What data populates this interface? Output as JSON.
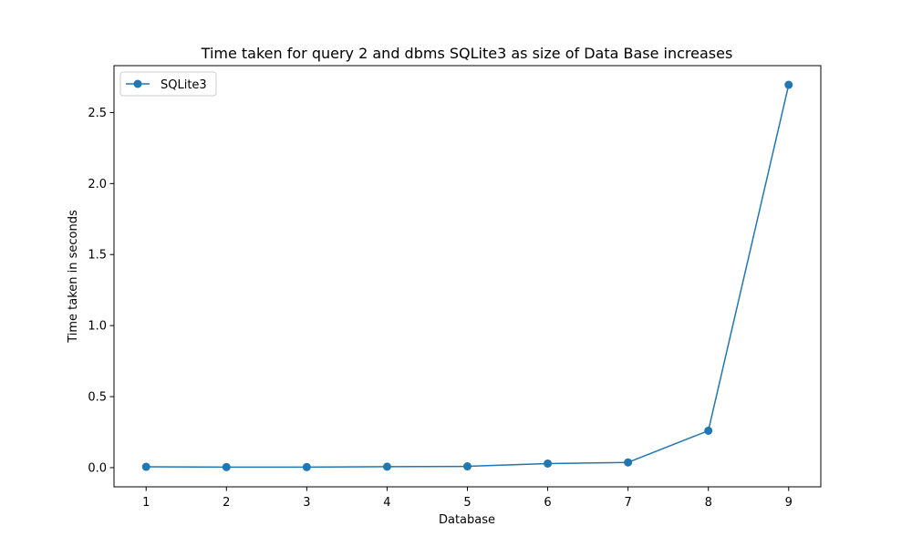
{
  "chart_data": {
    "type": "line",
    "title": "Time taken for query 2 and dbms SQLite3 as size of Data Base increases",
    "xlabel": "Database",
    "ylabel": "Time taken in seconds",
    "x": [
      1,
      2,
      3,
      4,
      5,
      6,
      7,
      8,
      9
    ],
    "xticks": [
      "1",
      "2",
      "3",
      "4",
      "5",
      "6",
      "7",
      "8",
      "9"
    ],
    "xlim": [
      0.6,
      9.4
    ],
    "ylim": [
      -0.135,
      2.83
    ],
    "yticks": [
      "0.0",
      "0.5",
      "1.0",
      "1.5",
      "2.0",
      "2.5"
    ],
    "series": [
      {
        "name": "SQLite3",
        "color": "#1f77b4",
        "marker": "circle",
        "values": [
          0.006,
          0.004,
          0.004,
          0.007,
          0.009,
          0.029,
          0.037,
          0.26,
          2.695
        ]
      }
    ],
    "legend": {
      "position": "top-left"
    },
    "grid": false
  }
}
